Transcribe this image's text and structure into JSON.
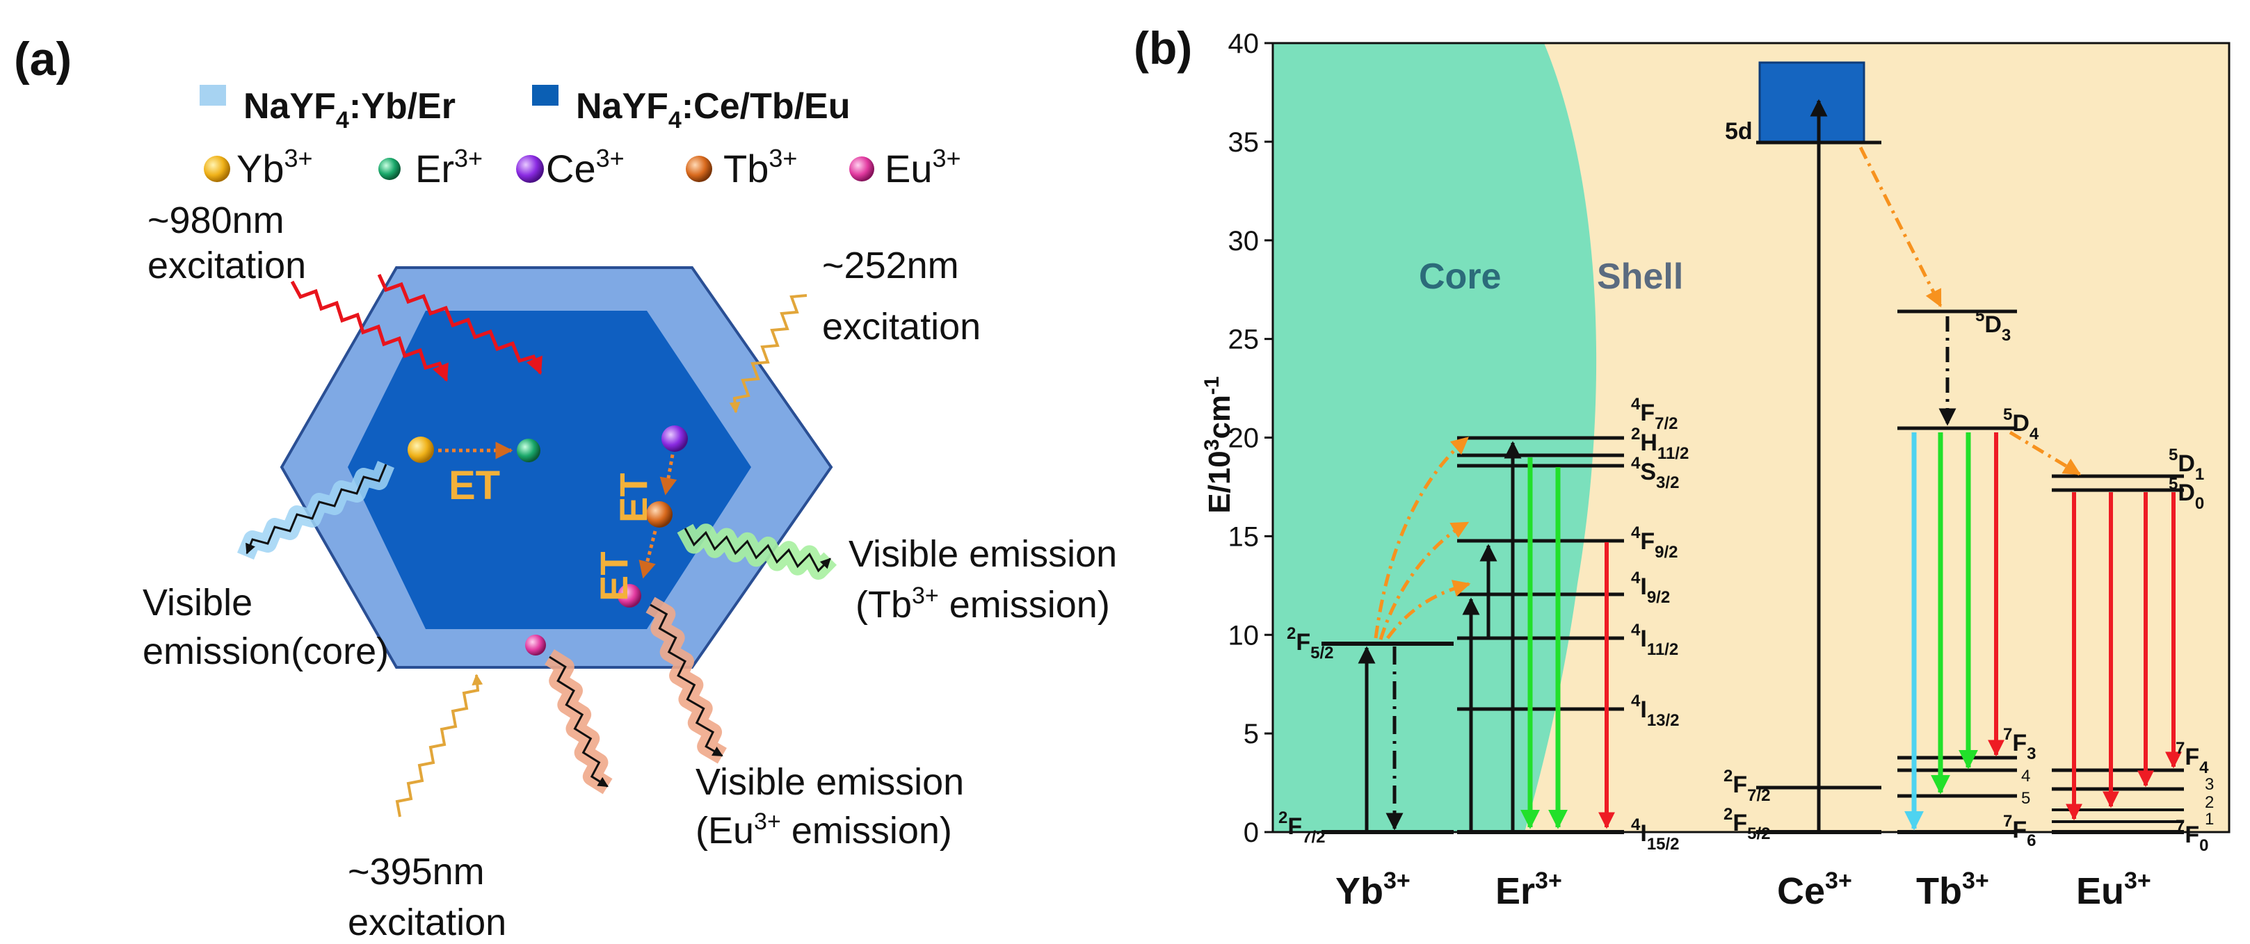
{
  "panel_a": {
    "label": "(a)",
    "legend": {
      "core_material": {
        "base": "NaYF",
        "sub": "4",
        "rest": ":Yb/Er",
        "color": "#a7d3f2"
      },
      "shell_material": {
        "base": "NaYF",
        "sub": "4",
        "rest": ":Ce/Tb/Eu",
        "color": "#0b5fb4"
      },
      "ions": [
        {
          "name": "Yb",
          "charge": "3+",
          "color": "#f0b21a"
        },
        {
          "name": "Er",
          "charge": "3+",
          "color": "#1aa86a"
        },
        {
          "name": "Ce",
          "charge": "3+",
          "color": "#8a2be2"
        },
        {
          "name": "Tb",
          "charge": "3+",
          "color": "#d96a1e"
        },
        {
          "name": "Eu",
          "charge": "3+",
          "color": "#e23aa0"
        }
      ]
    },
    "excitations": {
      "nm980": {
        "line1": "~980nm",
        "line2": "excitation"
      },
      "nm252": {
        "line1": "~252nm",
        "line2": "excitation"
      },
      "nm395": {
        "line1": "~395nm",
        "line2": "excitation"
      }
    },
    "et_labels": [
      "ET",
      "ET",
      "ET"
    ],
    "emissions": {
      "core": {
        "line1": "Visible",
        "line2": "emission(core)"
      },
      "tb": {
        "line1": "Visible emission",
        "line2_pre": "(Tb",
        "line2_sup": "3+",
        "line2_post": " emission)"
      },
      "eu": {
        "line1": "Visible emission",
        "line2_pre": "(Eu",
        "line2_sup": "3+",
        "line2_post": " emission)"
      }
    }
  },
  "panel_b": {
    "label": "(b)",
    "core_label": "Core",
    "shell_label": "Shell",
    "ylabel": {
      "pre": "E/10",
      "sup1": "3",
      "mid": "cm",
      "sup2": "-1"
    },
    "ions": [
      {
        "name": "Yb",
        "charge": "3+"
      },
      {
        "name": "Er",
        "charge": "3+"
      },
      {
        "name": "Ce",
        "charge": "3+"
      },
      {
        "name": "Tb",
        "charge": "3+"
      },
      {
        "name": "Eu",
        "charge": "3+"
      }
    ],
    "levels": {
      "yb": [
        {
          "sup": "2",
          "main": "F",
          "sub": "7/2"
        },
        {
          "sup": "2",
          "main": "F",
          "sub": "5/2"
        }
      ],
      "er": [
        {
          "sup": "4",
          "main": "F",
          "sub": "7/2"
        },
        {
          "sup": "2",
          "main": "H",
          "sub": "11/2"
        },
        {
          "sup": "4",
          "main": "S",
          "sub": "3/2"
        },
        {
          "sup": "4",
          "main": "F",
          "sub": "9/2"
        },
        {
          "sup": "4",
          "main": "I",
          "sub": "9/2"
        },
        {
          "sup": "4",
          "main": "I",
          "sub": "11/2"
        },
        {
          "sup": "4",
          "main": "I",
          "sub": "13/2"
        },
        {
          "sup": "4",
          "main": "I",
          "sub": "15/2"
        }
      ],
      "ce": [
        {
          "plain": "5d"
        },
        {
          "sup": "2",
          "main": "F",
          "sub": "7/2"
        },
        {
          "sup": "2",
          "main": "F",
          "sub": "5/2"
        }
      ],
      "tb": [
        {
          "sup": "5",
          "main": "D",
          "sub": "3"
        },
        {
          "sup": "5",
          "main": "D",
          "sub": "4"
        },
        {
          "sup": "7",
          "main": "F",
          "sub": "3"
        },
        {
          "plain": "4"
        },
        {
          "plain": "5"
        },
        {
          "sup": "7",
          "main": "F",
          "sub": "6"
        }
      ],
      "eu": [
        {
          "sup": "5",
          "main": "D",
          "sub": "1"
        },
        {
          "sup": "5",
          "main": "D",
          "sub": "0"
        },
        {
          "sup": "7",
          "main": "F",
          "sub": "4"
        },
        {
          "plain": "3"
        },
        {
          "plain": "2"
        },
        {
          "plain": "1"
        },
        {
          "sup": "7",
          "main": "F",
          "sub": "0"
        }
      ]
    }
  },
  "chart_data": {
    "type": "energy-level-diagram",
    "ylabel": "E/10^3cm^-1",
    "ylim": [
      0,
      40
    ],
    "yticks": [
      "0",
      "5",
      "10",
      "15",
      "20",
      "25",
      "30",
      "35",
      "40"
    ]
  }
}
